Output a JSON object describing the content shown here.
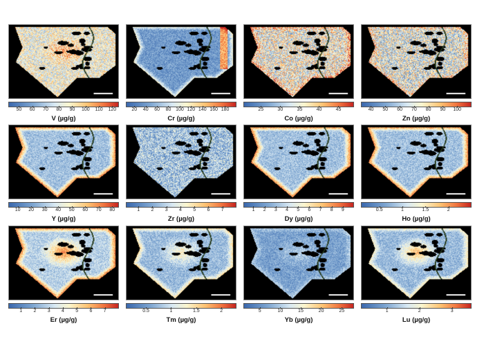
{
  "panels": [
    {
      "element": "V",
      "label": "V (µg/g)",
      "range": [
        42,
        125
      ],
      "ticks": [
        50,
        60,
        70,
        80,
        90,
        100,
        110,
        120
      ]
    },
    {
      "element": "Cr",
      "label": "Cr (µg/g)",
      "range": [
        5,
        200
      ],
      "ticks": [
        20,
        40,
        60,
        80,
        100,
        120,
        140,
        160,
        180
      ]
    },
    {
      "element": "Co",
      "label": "Co (µg/g)",
      "range": [
        20.5,
        49
      ],
      "ticks": [
        25,
        30,
        35,
        40,
        45
      ]
    },
    {
      "element": "Zn",
      "label": "Zn (µg/g)",
      "range": [
        33,
        110
      ],
      "ticks": [
        40,
        50,
        60,
        70,
        80,
        90,
        100
      ]
    },
    {
      "element": "Y",
      "label": "Y (µg/g)",
      "range": [
        3,
        85
      ],
      "ticks": [
        10,
        20,
        30,
        40,
        50,
        60,
        70,
        80
      ]
    },
    {
      "element": "Zr",
      "label": "Zr (µg/g)",
      "range": [
        0.1,
        8
      ],
      "ticks": [
        1,
        2,
        3,
        4,
        5,
        6,
        7
      ]
    },
    {
      "element": "Dy",
      "label": "Dy (µg/g)",
      "range": [
        0.1,
        10
      ],
      "ticks": [
        1,
        2,
        3,
        4,
        5,
        6,
        7,
        8,
        9
      ]
    },
    {
      "element": "Ho",
      "label": "Ho (µg/g)",
      "range": [
        0.1,
        2.5
      ],
      "ticks": [
        0.5,
        1,
        1.5,
        2
      ]
    },
    {
      "element": "Er",
      "label": "Er (µg/g)",
      "range": [
        0.1,
        8
      ],
      "ticks": [
        1,
        2,
        3,
        4,
        5,
        6,
        7
      ]
    },
    {
      "element": "Tm",
      "label": "Tm (µg/g)",
      "range": [
        0.1,
        2.3
      ],
      "ticks": [
        0.5,
        1,
        1.5,
        2
      ]
    },
    {
      "element": "Yb",
      "label": "Yb (µg/g)",
      "range": [
        1,
        28
      ],
      "ticks": [
        5,
        10,
        15,
        20,
        25
      ]
    },
    {
      "element": "Lu",
      "label": "Lu (µg/g)",
      "range": [
        0.2,
        3.6
      ],
      "ticks": [
        1,
        2,
        3
      ]
    }
  ]
}
